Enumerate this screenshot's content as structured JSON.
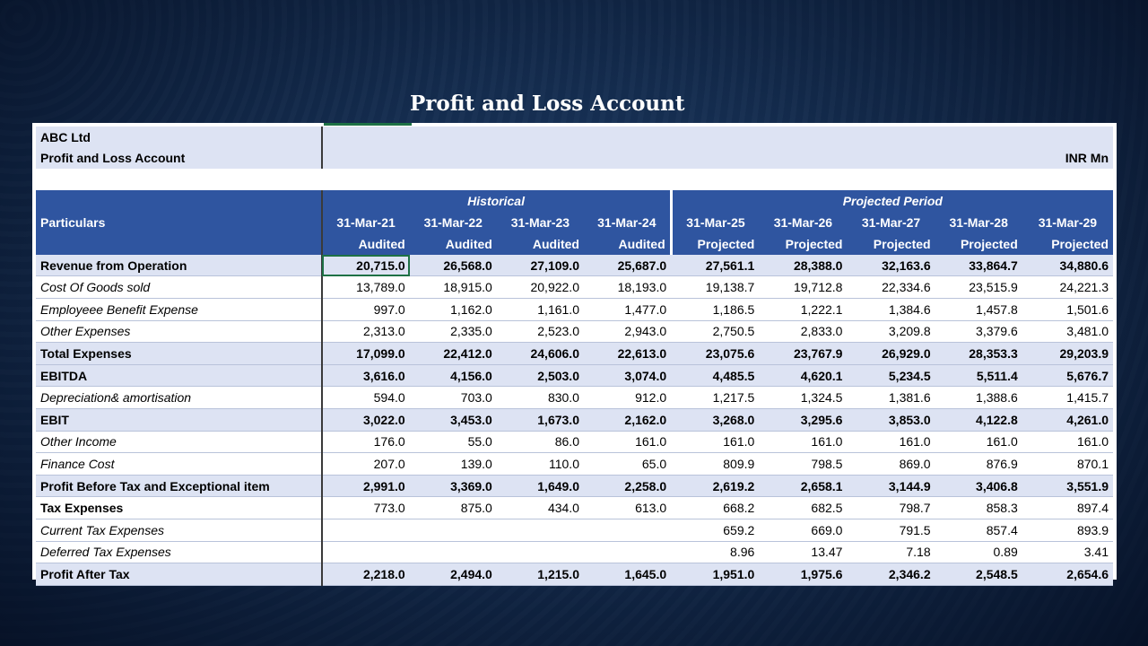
{
  "slide_title": "Profit and Loss Account",
  "company": "ABC Ltd",
  "statement": "Profit and Loss Account",
  "unit": "INR Mn",
  "groups": {
    "historical": "Historical",
    "projected": "Projected Period"
  },
  "particulars_label": "Particulars",
  "dates": [
    "31-Mar-21",
    "31-Mar-22",
    "31-Mar-23",
    "31-Mar-24",
    "31-Mar-25",
    "31-Mar-26",
    "31-Mar-27",
    "31-Mar-28",
    "31-Mar-29"
  ],
  "status": [
    "Audited",
    "Audited",
    "Audited",
    "Audited",
    "Projected",
    "Projected",
    "Projected",
    "Projected",
    "Projected"
  ],
  "rows": [
    {
      "label": "Revenue from Operation",
      "style": "bold",
      "values": [
        "20,715.0",
        "26,568.0",
        "27,109.0",
        "25,687.0",
        "27,561.1",
        "28,388.0",
        "32,163.6",
        "33,864.7",
        "34,880.6"
      ]
    },
    {
      "label": "Cost Of Goods sold",
      "style": "italic",
      "values": [
        "13,789.0",
        "18,915.0",
        "20,922.0",
        "18,193.0",
        "19,138.7",
        "19,712.8",
        "22,334.6",
        "23,515.9",
        "24,221.3"
      ]
    },
    {
      "label": "Employeee Benefit Expense",
      "style": "italic",
      "values": [
        "997.0",
        "1,162.0",
        "1,161.0",
        "1,477.0",
        "1,186.5",
        "1,222.1",
        "1,384.6",
        "1,457.8",
        "1,501.6"
      ]
    },
    {
      "label": "Other Expenses",
      "style": "italic",
      "values": [
        "2,313.0",
        "2,335.0",
        "2,523.0",
        "2,943.0",
        "2,750.5",
        "2,833.0",
        "3,209.8",
        "3,379.6",
        "3,481.0"
      ]
    },
    {
      "label": "Total Expenses",
      "style": "bold",
      "values": [
        "17,099.0",
        "22,412.0",
        "24,606.0",
        "22,613.0",
        "23,075.6",
        "23,767.9",
        "26,929.0",
        "28,353.3",
        "29,203.9"
      ]
    },
    {
      "label": "EBITDA",
      "style": "bold",
      "values": [
        "3,616.0",
        "4,156.0",
        "2,503.0",
        "3,074.0",
        "4,485.5",
        "4,620.1",
        "5,234.5",
        "5,511.4",
        "5,676.7"
      ]
    },
    {
      "label": "Depreciation& amortisation",
      "style": "italic",
      "values": [
        "594.0",
        "703.0",
        "830.0",
        "912.0",
        "1,217.5",
        "1,324.5",
        "1,381.6",
        "1,388.6",
        "1,415.7"
      ]
    },
    {
      "label": "EBIT",
      "style": "bold",
      "values": [
        "3,022.0",
        "3,453.0",
        "1,673.0",
        "2,162.0",
        "3,268.0",
        "3,295.6",
        "3,853.0",
        "4,122.8",
        "4,261.0"
      ]
    },
    {
      "label": "Other Income",
      "style": "italic",
      "values": [
        "176.0",
        "55.0",
        "86.0",
        "161.0",
        "161.0",
        "161.0",
        "161.0",
        "161.0",
        "161.0"
      ]
    },
    {
      "label": "Finance Cost",
      "style": "italic",
      "values": [
        "207.0",
        "139.0",
        "110.0",
        "65.0",
        "809.9",
        "798.5",
        "869.0",
        "876.9",
        "870.1"
      ]
    },
    {
      "label": " Profit Before Tax and Exceptional item",
      "style": "bold",
      "values": [
        "2,991.0",
        "3,369.0",
        "1,649.0",
        "2,258.0",
        "2,619.2",
        "2,658.1",
        "3,144.9",
        "3,406.8",
        "3,551.9"
      ]
    },
    {
      "label": " Tax Expenses",
      "style": "boldlabel",
      "values": [
        "773.0",
        "875.0",
        "434.0",
        "613.0",
        "668.2",
        "682.5",
        "798.7",
        "858.3",
        "897.4"
      ]
    },
    {
      "label": "Current Tax Expenses",
      "style": "italic",
      "values": [
        "",
        "",
        "",
        "",
        "659.2",
        "669.0",
        "791.5",
        "857.4",
        "893.9"
      ]
    },
    {
      "label": "Deferred Tax Expenses",
      "style": "italic",
      "values": [
        "",
        "",
        "",
        "",
        "8.96",
        "13.47",
        "7.18",
        "0.89",
        "3.41"
      ]
    },
    {
      "label": "Profit After Tax",
      "style": "bold",
      "values": [
        "2,218.0",
        "2,494.0",
        "1,215.0",
        "1,645.0",
        "1,951.0",
        "1,975.6",
        "2,346.2",
        "2,548.5",
        "2,654.6"
      ]
    }
  ]
}
